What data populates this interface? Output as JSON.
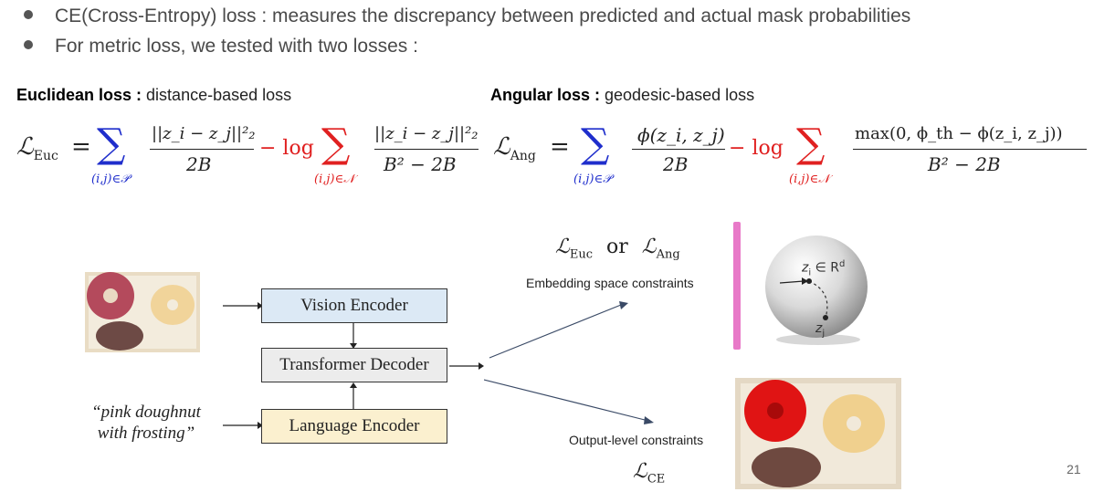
{
  "bullets": [
    "CE(Cross-Entropy) loss : measures the discrepancy between predicted and actual mask probabilities",
    "For metric loss, we tested with two losses :"
  ],
  "euclidean": {
    "name": "Euclidean loss :",
    "desc": " distance-based loss"
  },
  "angular": {
    "name": "Angular loss :",
    "desc": " geodesic-based loss"
  },
  "formula_euc": {
    "lhs": "ℒ",
    "lhs_sub": "Euc",
    "pos_set": "(i,j)∈𝒫",
    "pos_num": "||z_i − z_j||²₂",
    "den1": "2B",
    "minus_log": "− log",
    "neg_set": "(i,j)∈𝒩",
    "den2": "B² − 2B"
  },
  "formula_ang": {
    "lhs": "ℒ",
    "lhs_sub": "Ang",
    "pos_set": "(i,j)∈𝒫",
    "pos_num": "ϕ(z_i, z_j)",
    "den1": "2B",
    "minus_log": "− log",
    "neg_set": "(i,j)∈𝒩",
    "neg_num": "max(0, ϕ_th − ϕ(z_i, z_j))",
    "den2": "B² − 2B"
  },
  "diagram": {
    "vision_encoder": "Vision Encoder",
    "transformer_decoder": "Transformer Decoder",
    "language_encoder": "Language Encoder",
    "quote_line1": "“pink doughnut",
    "quote_line2": "with frosting”",
    "loss_choice_l1": "ℒ",
    "loss_choice_s1": "Euc",
    "loss_choice_or": "or",
    "loss_choice_l2": "ℒ",
    "loss_choice_s2": "Ang",
    "embedding_label": "Embedding space constraints",
    "sphere_zi": "z",
    "sphere_zi_sub": "i",
    "sphere_zi_rest": " ∈ R",
    "sphere_zi_sup": "d",
    "sphere_zj": "z",
    "sphere_zj_sub": "j",
    "output_label": "Output-level constraints",
    "ce_l": "ℒ",
    "ce_sub": "CE"
  },
  "page_number": "21",
  "colors": {
    "blue": "#1f2ecc",
    "red": "#e02020",
    "vision_fill": "#dce9f5",
    "decoder_fill": "#ececec",
    "language_fill": "#fbf0cf",
    "plane": "#e879c8"
  }
}
